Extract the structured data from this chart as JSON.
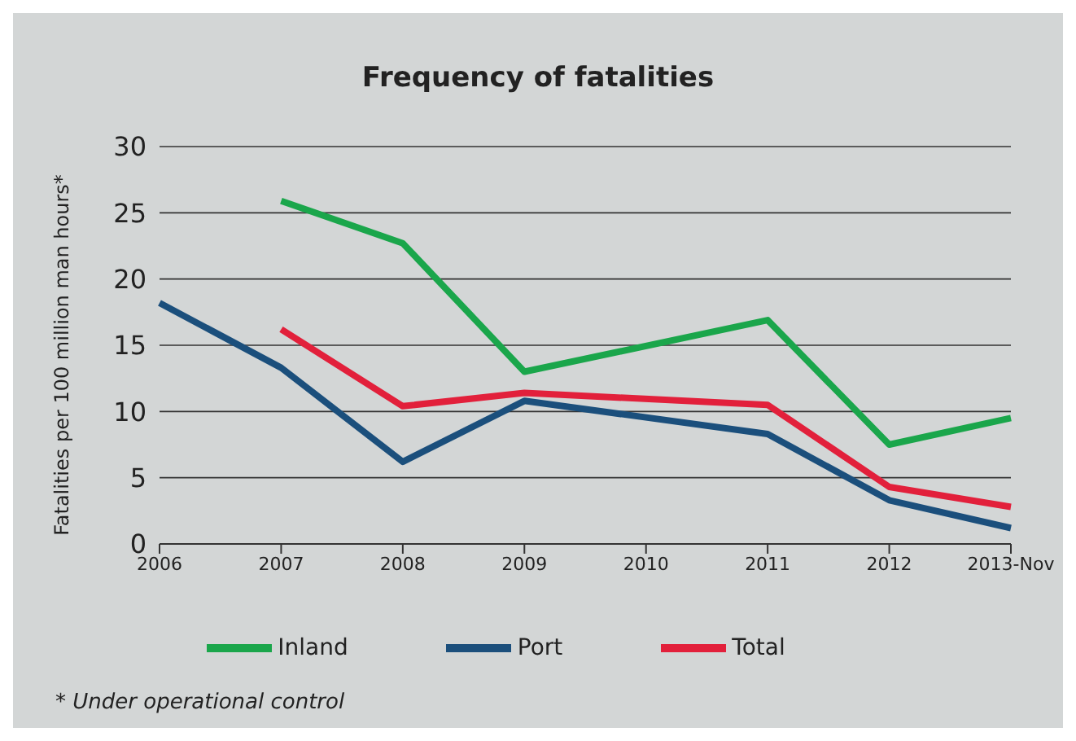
{
  "chart_data": {
    "type": "line",
    "title": "Frequency of fatalities",
    "ylabel": "Fatalities per 100 million man hours*",
    "annotations": [
      "* Under operational control"
    ],
    "categories": [
      "2006",
      "2007",
      "2008",
      "2009",
      "2010",
      "2011",
      "2012",
      "2013-Nov"
    ],
    "series": [
      {
        "name": "Port",
        "color": "#1b4f7c",
        "values": [
          18.2,
          13.3,
          6.2,
          10.8,
          null,
          8.3,
          3.3,
          1.2
        ]
      },
      {
        "name": "Inland",
        "color": "#1aa64b",
        "values": [
          null,
          25.9,
          22.7,
          13.0,
          null,
          16.9,
          7.5,
          9.5
        ]
      },
      {
        "name": "Total",
        "color": "#e2203b",
        "values": [
          null,
          16.2,
          10.4,
          11.4,
          null,
          10.5,
          4.3,
          2.8
        ]
      }
    ],
    "ylim": [
      0,
      30
    ],
    "yticks": [
      0,
      5,
      10,
      15,
      20,
      25,
      30
    ],
    "grid": "y",
    "legend": "bottom",
    "marker": "none",
    "line_style": "solid"
  }
}
